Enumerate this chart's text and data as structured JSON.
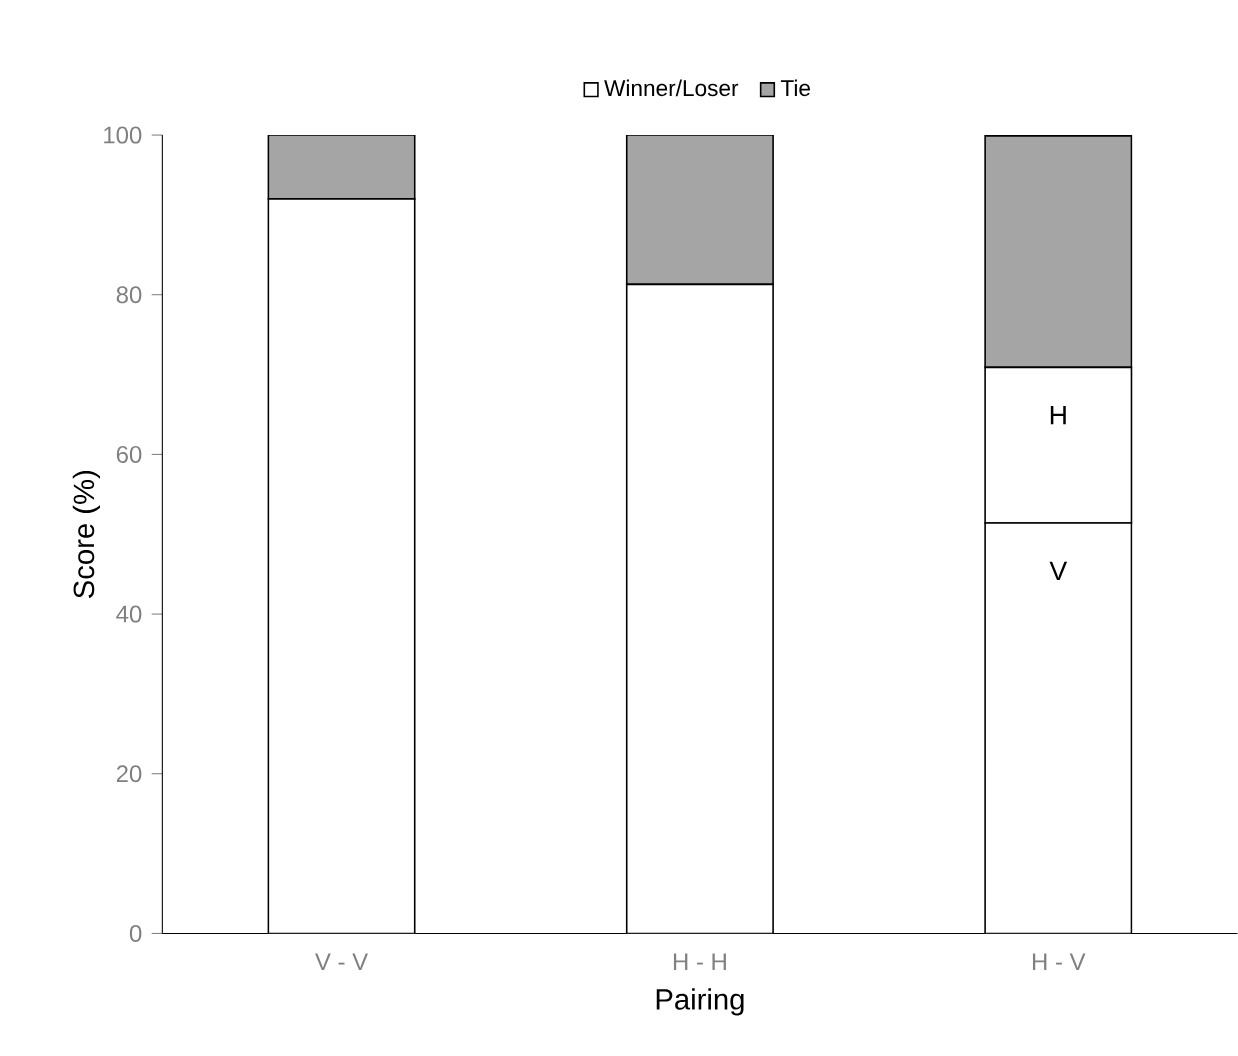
{
  "chart_data": {
    "type": "bar",
    "stacked": true,
    "xlabel": "Pairing",
    "ylabel": "Score (%)",
    "categories": [
      "V - V",
      "H - H",
      "H - V"
    ],
    "series": [
      {
        "name": "Winner/Loser",
        "color": "#ffffff",
        "values": [
          92,
          81.3,
          51.4
        ],
        "value_labels": [
          null,
          null,
          "V"
        ]
      },
      {
        "color": "#ffffff",
        "values": [
          null,
          null,
          19.5
        ],
        "value_labels": [
          null,
          null,
          "H"
        ]
      },
      {
        "name": "Tie",
        "color": "#a5a5a5",
        "values": [
          8,
          18.7,
          29
        ]
      }
    ],
    "ylim": [
      0,
      100
    ],
    "yticks": [
      0,
      20,
      40,
      60,
      80,
      100
    ],
    "legend": "top",
    "grid": false
  }
}
